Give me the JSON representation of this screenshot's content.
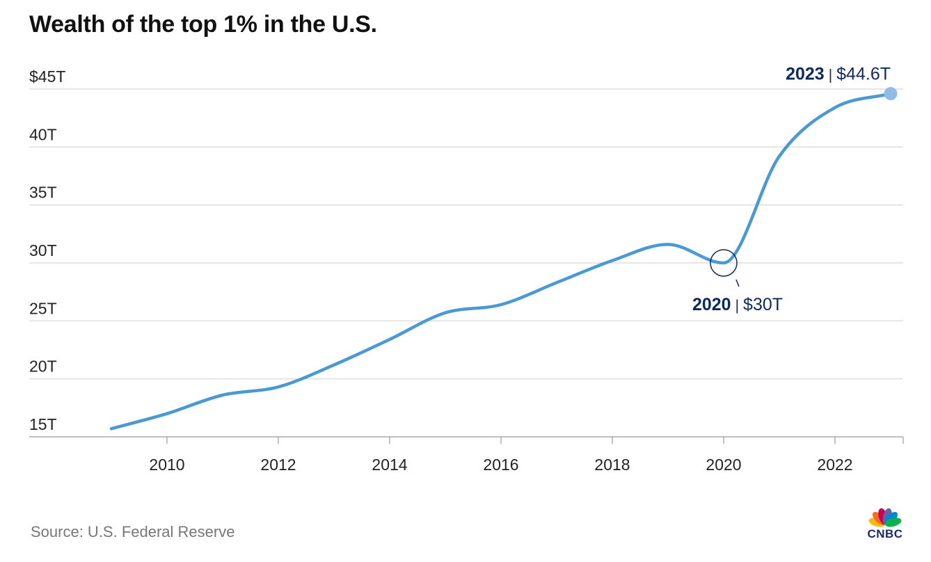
{
  "title": "Wealth of the top 1% in the U.S.",
  "source": "Source: U.S. Federal Reserve",
  "logo_text": "CNBC",
  "chart_data": {
    "type": "line",
    "title": "Wealth of the top 1% in the U.S.",
    "xlabel": "",
    "ylabel": "",
    "xlim": [
      2009,
      2023
    ],
    "ylim": [
      15,
      45
    ],
    "grid": true,
    "x_ticks": [
      2010,
      2012,
      2014,
      2016,
      2018,
      2020,
      2022
    ],
    "x_tick_labels": [
      "2010",
      "2012",
      "2014",
      "2016",
      "2018",
      "2020",
      "2022"
    ],
    "y_ticks": [
      15,
      20,
      25,
      30,
      35,
      40,
      45
    ],
    "y_tick_labels": [
      "15T",
      "20T",
      "25T",
      "30T",
      "35T",
      "40T",
      "$45T"
    ],
    "series": [
      {
        "color": "#4a98d4",
        "x": [
          2009,
          2010,
          2011,
          2012,
          2013,
          2014,
          2015,
          2016,
          2017,
          2018,
          2019,
          2020,
          2021,
          2022,
          2023
        ],
        "y": [
          15.7,
          17.0,
          18.6,
          19.3,
          21.2,
          23.4,
          25.7,
          26.4,
          28.3,
          30.2,
          31.6,
          30.0,
          39.2,
          43.4,
          44.6
        ]
      }
    ],
    "annotations": [
      {
        "year": "2020",
        "value": "$30T",
        "separator": "|",
        "x": 2020,
        "y": 30.0,
        "marker": "circle",
        "label_position": "below-right"
      },
      {
        "year": "2023",
        "value": "$44.6T",
        "separator": "|",
        "x": 2023,
        "y": 44.6,
        "marker": "dot",
        "label_position": "above-left"
      }
    ],
    "colors": {
      "line": "#4a98d4",
      "annotation": "#0e2a5c",
      "grid": "#d6d6d6",
      "axis_text": "#222222"
    }
  }
}
